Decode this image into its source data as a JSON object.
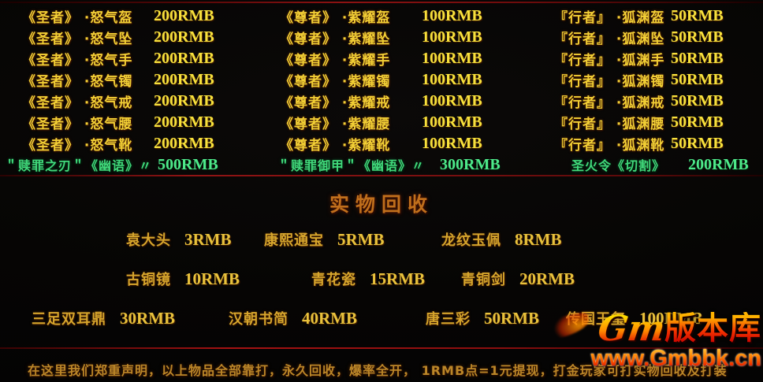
{
  "equipment": {
    "columns": [
      {
        "rows": [
          {
            "label": "《圣者》 ·怒气盔",
            "price": "200RMB"
          },
          {
            "label": "《圣者》 ·怒气坠",
            "price": "200RMB"
          },
          {
            "label": "《圣者》 ·怒气手",
            "price": "200RMB"
          },
          {
            "label": "《圣者》 ·怒气镯",
            "price": "200RMB"
          },
          {
            "label": "《圣者》 ·怒气戒",
            "price": "200RMB"
          },
          {
            "label": "《圣者》 ·怒气腰",
            "price": "200RMB"
          },
          {
            "label": "《圣者》 ·怒气靴",
            "price": "200RMB"
          }
        ]
      },
      {
        "rows": [
          {
            "label": "《尊者》 ·紫耀盔",
            "price": "100RMB"
          },
          {
            "label": "《尊者》 ·紫耀坠",
            "price": "100RMB"
          },
          {
            "label": "《尊者》 ·紫耀手",
            "price": "100RMB"
          },
          {
            "label": "《尊者》 ·紫耀镯",
            "price": "100RMB"
          },
          {
            "label": "《尊者》 ·紫耀戒",
            "price": "100RMB"
          },
          {
            "label": "《尊者》 ·紫耀腰",
            "price": "100RMB"
          },
          {
            "label": "《尊者》 ·紫耀靴",
            "price": "100RMB"
          }
        ]
      },
      {
        "rows": [
          {
            "label": "『行者』 ·狐渊盔",
            "price": "50RMB"
          },
          {
            "label": "『行者』 ·狐渊坠",
            "price": "50RMB"
          },
          {
            "label": "『行者』 ·狐渊手",
            "price": "50RMB"
          },
          {
            "label": "『行者』 ·狐渊镯",
            "price": "50RMB"
          },
          {
            "label": "『行者』 ·狐渊戒",
            "price": "50RMB"
          },
          {
            "label": "『行者』 ·狐渊腰",
            "price": "50RMB"
          },
          {
            "label": "『行者』 ·狐渊靴",
            "price": "50RMB"
          }
        ]
      }
    ]
  },
  "special_items": [
    {
      "label": "＂赎罪之刃＂《幽语》〃",
      "price": "500RMB"
    },
    {
      "label": "＂赎罪御甲＂《幽语》〃",
      "price": "300RMB"
    },
    {
      "label": "圣火令《切割》",
      "price": "200RMB"
    }
  ],
  "recycle": {
    "title": "实物回收",
    "rows": [
      [
        {
          "label": "袁大头",
          "price": "3RMB"
        },
        {
          "label": "康熙通宝",
          "price": "5RMB"
        },
        {
          "label": "龙纹玉佩",
          "price": "8RMB"
        }
      ],
      [
        {
          "label": "古铜镜",
          "price": "10RMB"
        },
        {
          "label": "青花瓷",
          "price": "15RMB"
        },
        {
          "label": "青铜剑",
          "price": "20RMB"
        }
      ],
      [
        {
          "label": "三足双耳鼎",
          "price": "30RMB"
        },
        {
          "label": "汉朝书简",
          "price": "40RMB"
        },
        {
          "label": "唐三彩",
          "price": "50RMB"
        },
        {
          "label": "传国玉玺",
          "price": "100RMB"
        }
      ]
    ]
  },
  "statement": "在这里我们郑重声明，以上物品全部靠打，永久回收，爆率全开，  1RMB点=1元提现，打金玩家可打实物回收及打装",
  "watermark": {
    "logo_gm": "Gm",
    "logo_cn": "版本库",
    "site": "www.Gmbbk.cn"
  },
  "colors": {
    "gold_label": "#f2cf35",
    "gold_price": "#f7e13c",
    "green": "#41d97b",
    "recycle_title": "#c06f1c",
    "recycle_gold": "#d6a52c",
    "statement_gold": "#bb8628",
    "divider_red": "#8d1212",
    "logo_red": "#e01000"
  }
}
